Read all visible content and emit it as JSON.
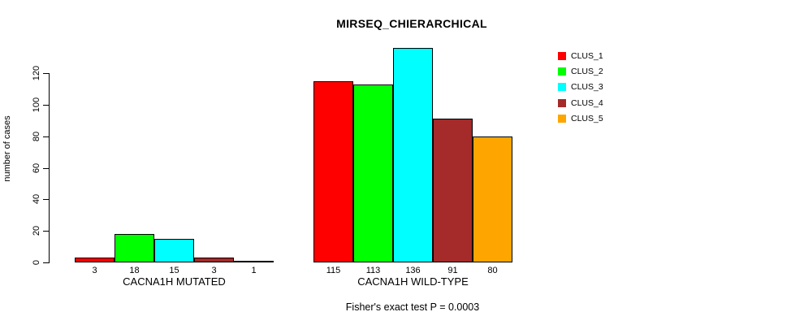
{
  "chart": {
    "title": "MIRSEQ_CHIERARCHICAL",
    "ylabel": "number of cases",
    "footer": "Fisher's exact test P = 0.0003"
  },
  "chart_data": {
    "type": "bar",
    "title": "MIRSEQ_CHIERARCHICAL",
    "xlabel": "",
    "ylabel": "number of cases",
    "ylim": [
      0,
      140
    ],
    "yticks": [
      0,
      20,
      40,
      60,
      80,
      100,
      120
    ],
    "grid": false,
    "legend_position": "top-right",
    "categories": [
      "CACNA1H MUTATED",
      "CACNA1H WILD-TYPE"
    ],
    "series": [
      {
        "name": "CLUS_1",
        "color": "#FF0000",
        "values": [
          3,
          115
        ]
      },
      {
        "name": "CLUS_2",
        "color": "#00FF00",
        "values": [
          18,
          113
        ]
      },
      {
        "name": "CLUS_3",
        "color": "#00FFFF",
        "values": [
          15,
          136
        ]
      },
      {
        "name": "CLUS_4",
        "color": "#A52A2A",
        "values": [
          3,
          91
        ]
      },
      {
        "name": "CLUS_5",
        "color": "#FFA500",
        "values": [
          1,
          80
        ]
      }
    ],
    "bar_value_labels": [
      [
        3,
        18,
        15,
        3,
        1
      ],
      [
        115,
        113,
        136,
        91,
        80
      ]
    ],
    "annotation": "Fisher's exact test P = 0.0003"
  }
}
